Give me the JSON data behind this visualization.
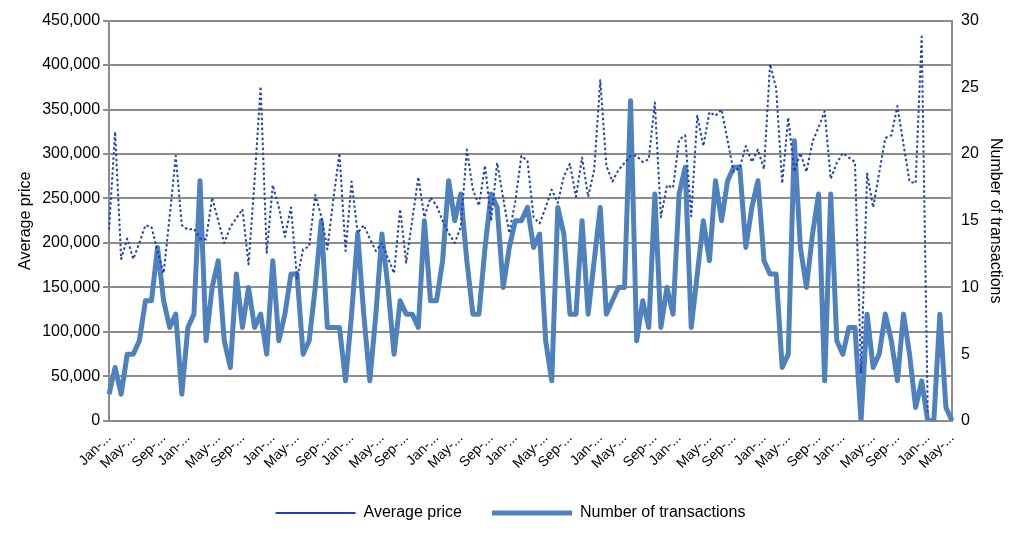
{
  "chart_data": {
    "type": "line",
    "ylabel": "Average price",
    "y2label": "Number of transactions",
    "categories": [
      "Jan-...",
      null,
      null,
      null,
      "May-...",
      null,
      null,
      null,
      null,
      "Sep-...",
      null,
      null,
      null,
      "Jan-...",
      null,
      null,
      null,
      null,
      "May-...",
      null,
      null,
      null,
      "Sep-...",
      null,
      null,
      null,
      null,
      "Jan-...",
      null,
      null,
      null,
      "May-...",
      null,
      null,
      null,
      null,
      "Sep-...",
      null,
      null,
      null,
      "Jan-...",
      null,
      null,
      null,
      null,
      "May-...",
      null,
      null,
      null,
      "Sep-...",
      null,
      null,
      null,
      null,
      "Jan-...",
      null,
      null,
      null,
      "May-...",
      null,
      null,
      null,
      null,
      "Sep-...",
      null,
      null,
      null,
      "Jan-...",
      null,
      null,
      null,
      null,
      "May-...",
      null,
      null,
      null,
      "Sep-...",
      null,
      null,
      null,
      null,
      "Jan-...",
      null,
      null,
      null,
      "May-...",
      null,
      null,
      null,
      null,
      "Sep-...",
      null,
      null,
      null,
      "Jan-...",
      null,
      null,
      null,
      null,
      "May-...",
      null,
      null,
      null,
      "Sep-...",
      null,
      null,
      null,
      null,
      "Jan-...",
      null,
      null,
      null,
      "May-...",
      null,
      null,
      null,
      null,
      "Sep-...",
      null,
      null,
      null,
      "Jan-...",
      null,
      null,
      null,
      null,
      "May-...",
      null,
      null,
      null,
      "Sep-...",
      null,
      null,
      null,
      null,
      "Jan-...",
      null,
      null,
      null,
      "May-..."
    ],
    "series": [
      {
        "name": "Average price",
        "color": "#1f3fbf",
        "line_style": "dotted",
        "values": [
          215000,
          325000,
          182000,
          205000,
          182000,
          200000,
          220000,
          218000,
          190000,
          166000,
          230000,
          298000,
          220000,
          215000,
          216000,
          205000,
          204000,
          251000,
          225000,
          200000,
          218000,
          228000,
          238000,
          176000,
          270000,
          376000,
          189000,
          265000,
          240000,
          207000,
          240000,
          160000,
          193000,
          196000,
          254000,
          230000,
          193000,
          250000,
          301000,
          191000,
          269000,
          211000,
          220000,
          205000,
          191000,
          200000,
          183000,
          166000,
          238000,
          178000,
          226000,
          274000,
          229000,
          251000,
          242000,
          225000,
          211000,
          200000,
          218000,
          305000,
          260000,
          242000,
          287000,
          225000,
          290000,
          250000,
          211000,
          247000,
          298000,
          292000,
          229000,
          222000,
          240000,
          260000,
          245000,
          275000,
          289000,
          252000,
          296000,
          252000,
          282000,
          383000,
          287000,
          269000,
          282000,
          290000,
          298000,
          298000,
          291000,
          294000,
          358000,
          229000,
          265000,
          262000,
          316000,
          321000,
          230000,
          343000,
          309000,
          347000,
          343000,
          350000,
          315000,
          280000,
          285000,
          309000,
          291000,
          305000,
          283000,
          401000,
          374000,
          267000,
          341000,
          280000,
          301000,
          280000,
          314000,
          330000,
          348000,
          272000,
          290000,
          301000,
          296000,
          291000,
          53000,
          278000,
          240000,
          279000,
          318000,
          321000,
          354000,
          311000,
          269000,
          267000,
          432000,
          10000,
          null,
          null,
          null,
          null
        ]
      },
      {
        "name": "Number of transactions",
        "color": "#4f81bd",
        "line_style": "solid",
        "axis": "y2",
        "values": [
          2,
          4,
          2,
          5,
          5,
          6,
          9,
          9,
          13,
          9,
          7,
          8,
          2,
          7,
          8,
          18,
          6,
          10,
          12,
          6,
          4,
          11,
          7,
          10,
          7,
          8,
          5,
          12,
          6,
          8,
          11,
          11,
          5,
          6,
          10,
          15,
          7,
          7,
          7,
          3,
          8,
          14,
          8,
          3,
          8,
          14,
          10,
          5,
          9,
          8,
          8,
          7,
          15,
          9,
          9,
          12,
          18,
          15,
          17,
          12,
          8,
          8,
          13,
          17,
          16,
          10,
          13,
          15,
          15,
          16,
          13,
          14,
          6,
          3,
          16,
          14,
          8,
          8,
          15,
          8,
          12,
          16,
          8,
          9,
          10,
          10,
          24,
          6,
          9,
          7,
          17,
          7,
          10,
          8,
          17,
          19,
          7,
          11,
          15,
          12,
          18,
          15,
          18,
          19,
          19,
          13,
          16,
          18,
          12,
          11,
          11,
          4,
          5,
          21,
          13,
          10,
          14,
          17,
          3,
          17,
          6,
          5,
          7,
          7,
          0,
          8,
          4,
          5,
          8,
          6,
          3,
          8,
          5,
          1,
          3,
          0,
          0,
          8,
          1,
          0
        ]
      }
    ],
    "ylim": [
      0,
      450000
    ],
    "yticks": [
      0,
      {
        "value": 50000,
        "label": "50,000"
      },
      {
        "value": 100000,
        "label": "100,000"
      },
      {
        "value": 150000,
        "label": "150,000"
      },
      {
        "value": 200000,
        "label": "200,000"
      },
      {
        "value": 250000,
        "label": "250,000"
      },
      {
        "value": 300000,
        "label": "300,000"
      },
      {
        "value": 350000,
        "label": "350,000"
      },
      {
        "value": 400000,
        "label": "400,000"
      },
      {
        "value": 450000,
        "label": "450,000"
      }
    ],
    "y2lim": [
      0,
      30
    ],
    "y2ticks": [
      0,
      5,
      10,
      15,
      20,
      25,
      30
    ],
    "grid": "y",
    "legend": "bottom"
  }
}
